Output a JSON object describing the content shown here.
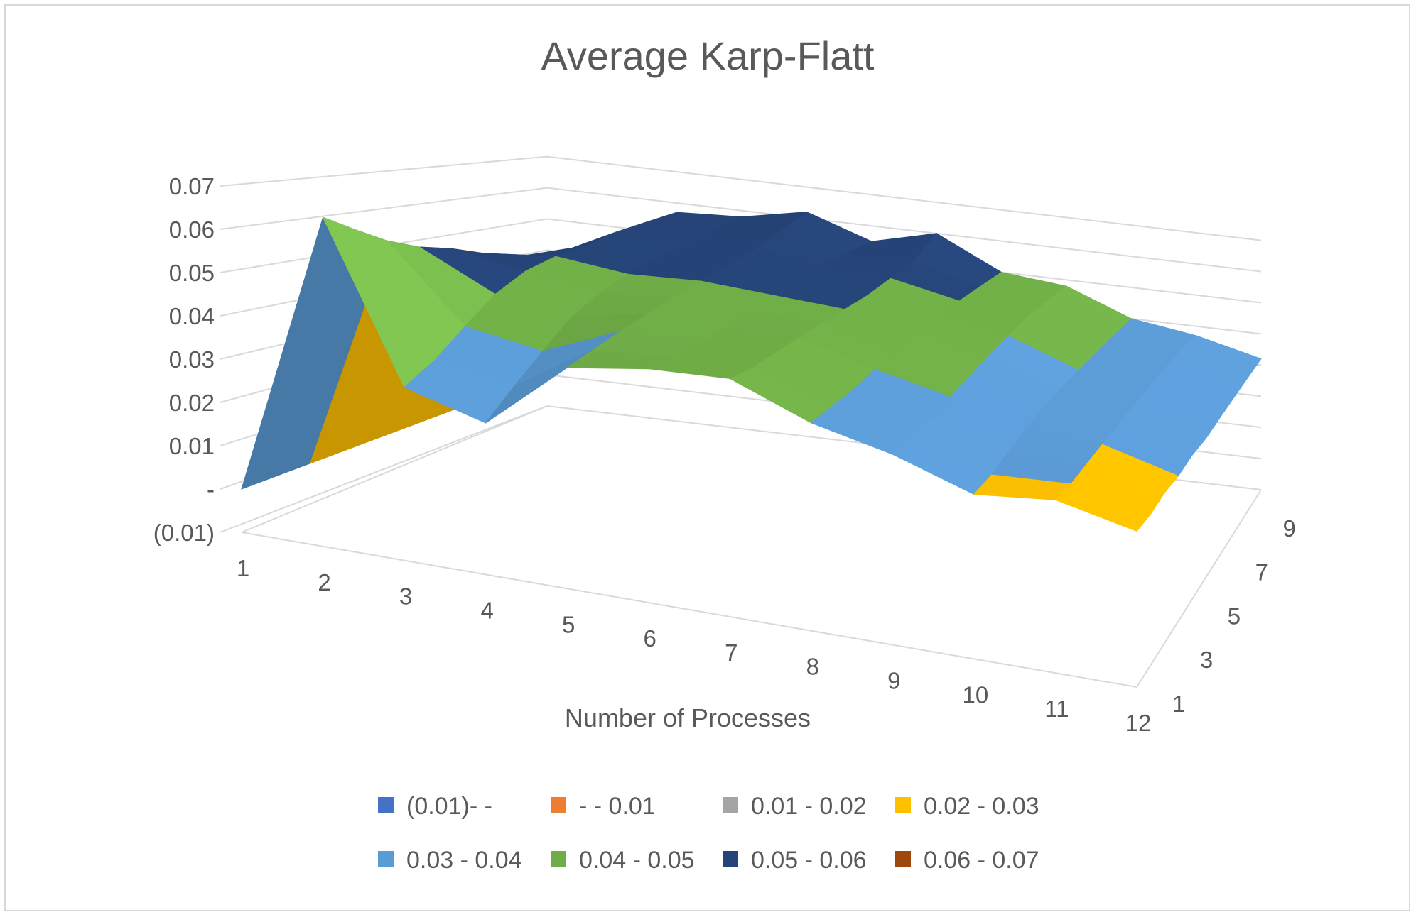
{
  "chart_data": {
    "type": "surface",
    "title": "Average Karp-Flatt",
    "xlabel": "Number of Processes",
    "ylabel": "",
    "zlabel": "",
    "x_ticks": [
      "1",
      "2",
      "3",
      "4",
      "5",
      "6",
      "7",
      "8",
      "9",
      "10",
      "11",
      "12"
    ],
    "z_tick_labels": [
      "(0.01)",
      "-",
      "0.01",
      "0.02",
      "0.03",
      "0.04",
      "0.05",
      "0.06",
      "0.07"
    ],
    "z_tick_values": [
      -0.01,
      0,
      0.01,
      0.02,
      0.03,
      0.04,
      0.05,
      0.06,
      0.07
    ],
    "depth_ticks": [
      "1",
      "3",
      "5",
      "7",
      "9"
    ],
    "zlim": [
      -0.01,
      0.07
    ],
    "grid": true,
    "legend_position": "bottom",
    "bands": [
      {
        "label": "(0.01)- -",
        "color": "#4472c4"
      },
      {
        "label": "-   - 0.01",
        "color": "#ed7d31"
      },
      {
        "label": "0.01 - 0.02",
        "color": "#a5a5a5"
      },
      {
        "label": "0.02 - 0.03",
        "color": "#ffc000"
      },
      {
        "label": "0.03 - 0.04",
        "color": "#5b9bd5"
      },
      {
        "label": "0.04 - 0.05",
        "color": "#70ad47"
      },
      {
        "label": "0.05 - 0.06",
        "color": "#264478"
      },
      {
        "label": "0.06 - 0.07",
        "color": "#9e480e"
      }
    ],
    "values": [
      [
        0.0,
        0.0,
        0.0,
        0.0,
        0.0,
        0.0,
        0.0,
        0.0,
        0.0,
        0.0
      ],
      [
        0.066,
        0.062,
        0.058,
        0.055,
        0.053,
        0.05,
        0.047,
        0.045,
        0.042,
        0.04
      ],
      [
        0.03,
        0.034,
        0.04,
        0.046,
        0.05,
        0.052,
        0.053,
        0.055,
        0.056,
        0.057
      ],
      [
        0.025,
        0.031,
        0.037,
        0.043,
        0.047,
        0.05,
        0.052,
        0.054,
        0.056,
        0.058
      ],
      [
        0.041,
        0.043,
        0.045,
        0.047,
        0.049,
        0.051,
        0.053,
        0.055,
        0.058,
        0.062
      ],
      [
        0.044,
        0.044,
        0.045,
        0.046,
        0.048,
        0.05,
        0.052,
        0.053,
        0.054,
        0.055
      ],
      [
        0.045,
        0.045,
        0.046,
        0.047,
        0.048,
        0.049,
        0.05,
        0.052,
        0.054,
        0.06
      ],
      [
        0.038,
        0.039,
        0.04,
        0.042,
        0.044,
        0.046,
        0.047,
        0.048,
        0.049,
        0.05
      ],
      [
        0.034,
        0.035,
        0.036,
        0.038,
        0.04,
        0.042,
        0.044,
        0.046,
        0.047,
        0.048
      ],
      [
        0.028,
        0.029,
        0.031,
        0.033,
        0.035,
        0.036,
        0.037,
        0.038,
        0.039,
        0.04
      ],
      [
        0.03,
        0.03,
        0.031,
        0.032,
        0.033,
        0.034,
        0.035,
        0.036,
        0.037,
        0.037
      ],
      [
        0.026,
        0.026,
        0.027,
        0.027,
        0.028,
        0.028,
        0.029,
        0.03,
        0.031,
        0.032
      ]
    ]
  }
}
